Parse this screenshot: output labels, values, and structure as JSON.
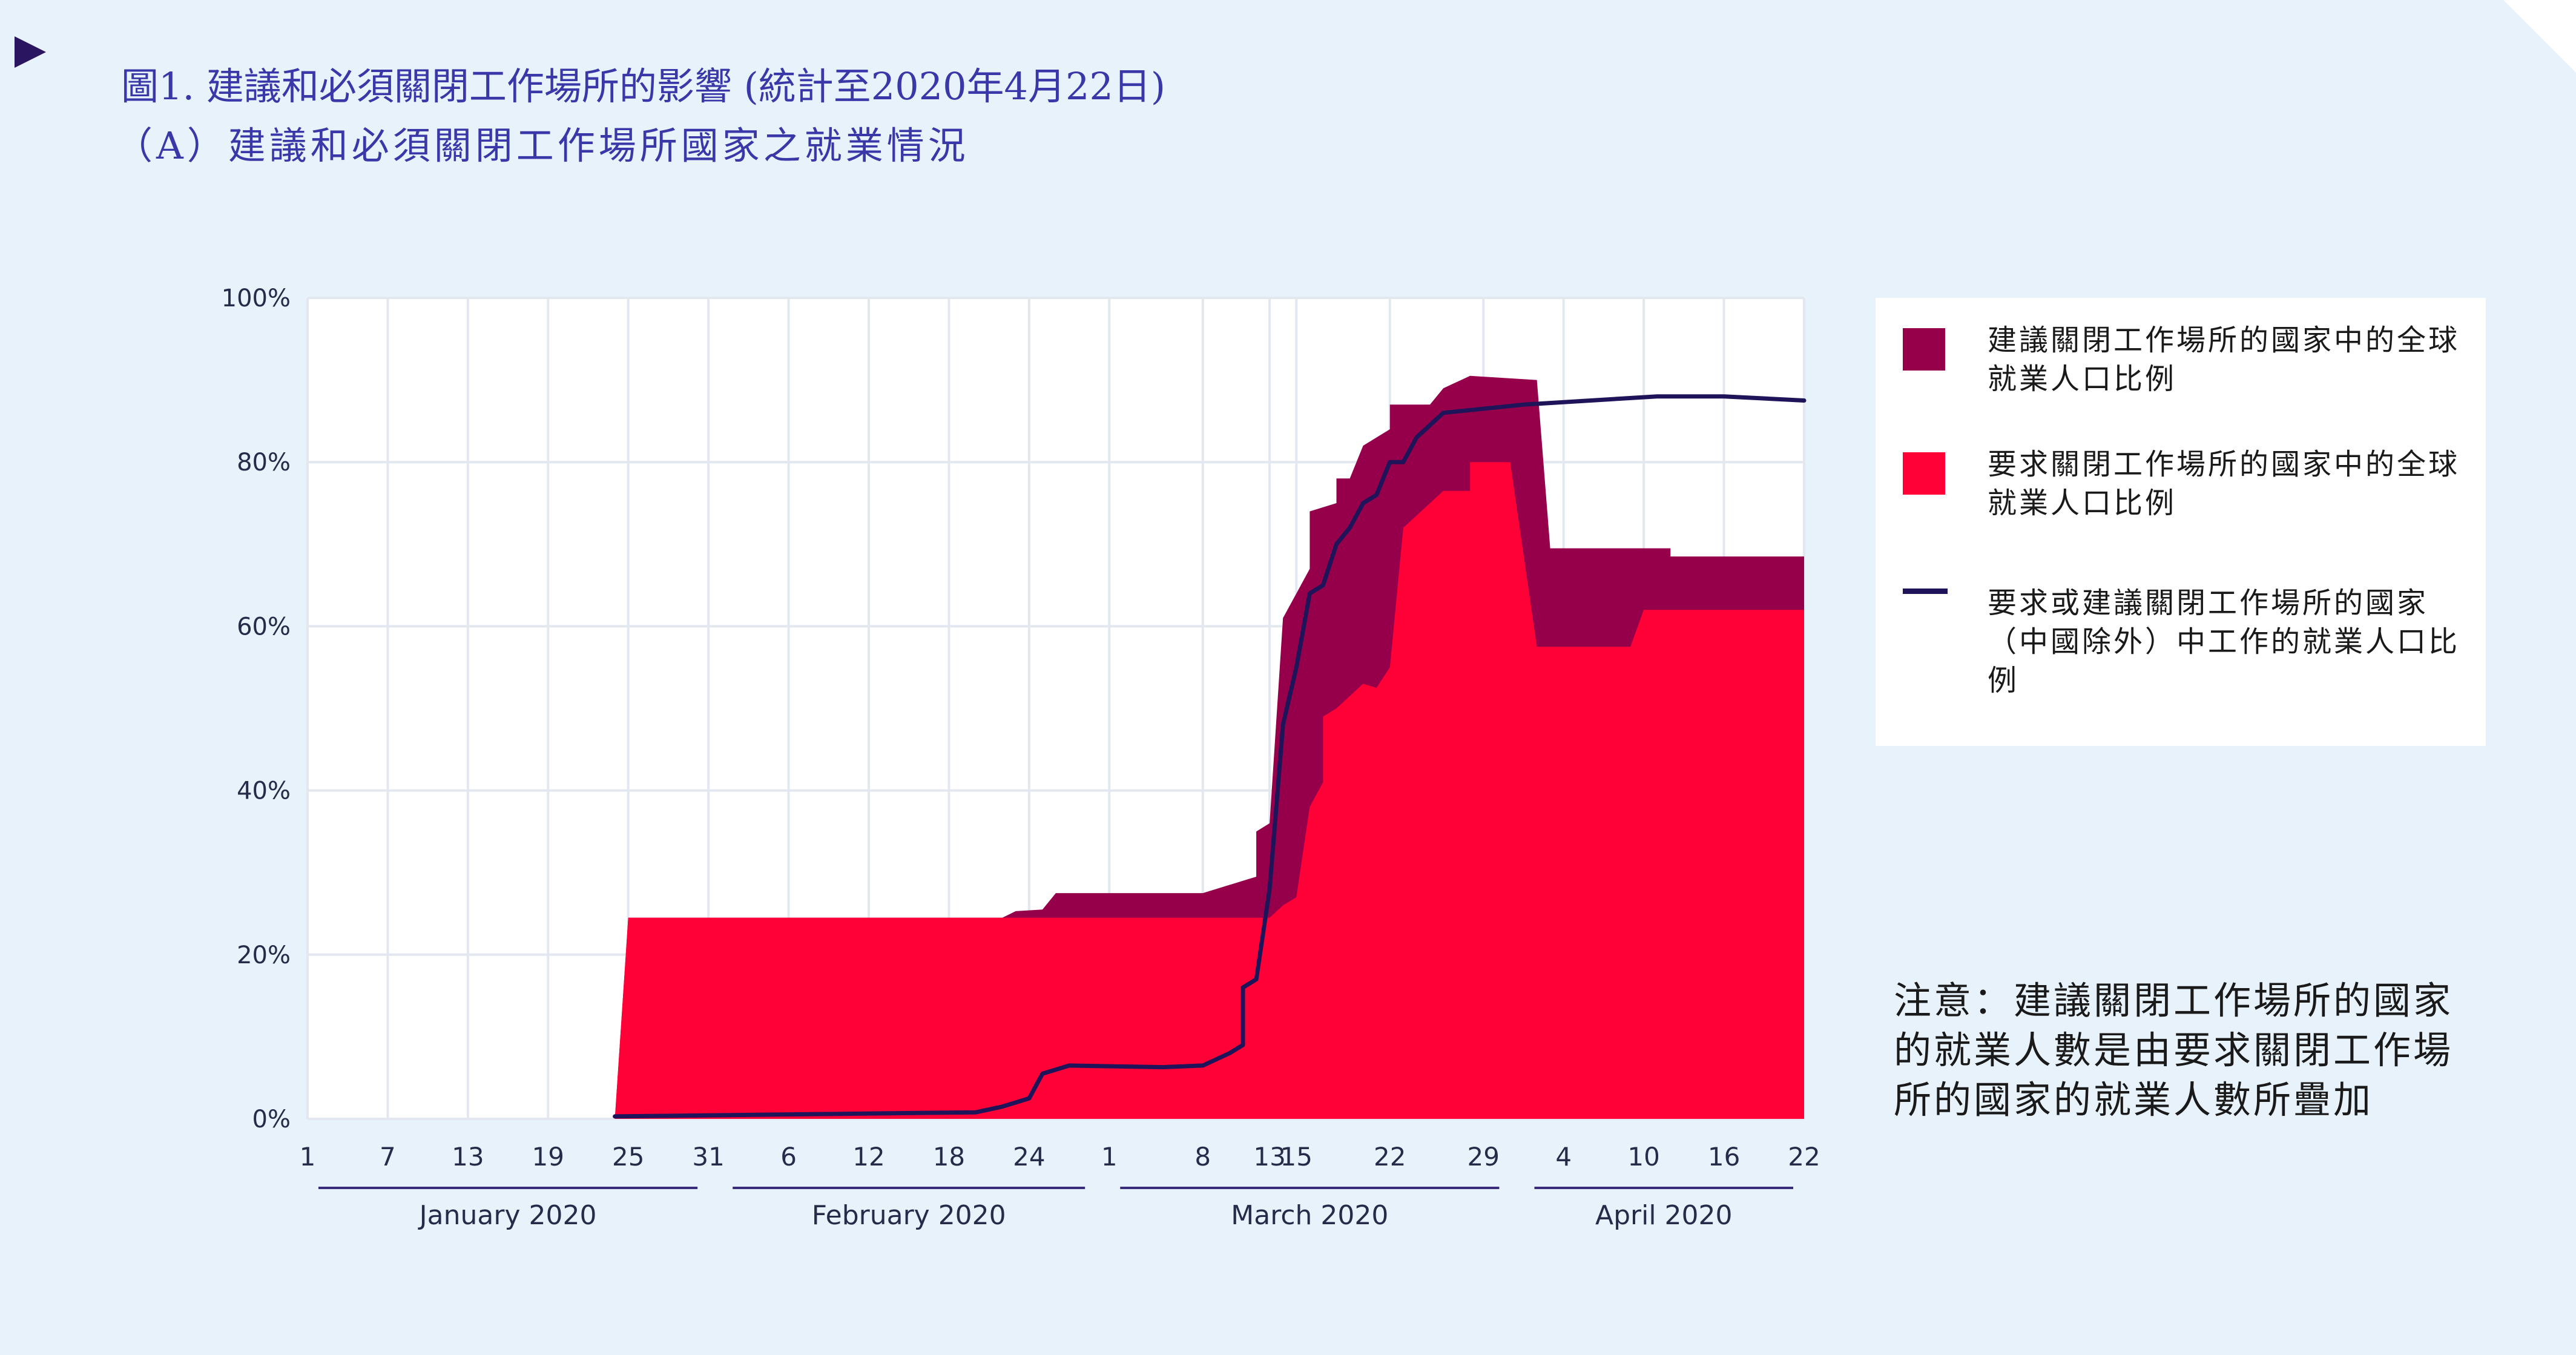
{
  "title_line1": "圖1. 建議和必須關閉工作場所的影響 (統計至2020年4月22日)",
  "title_line2": "（A）建議和必須關閉工作場所國家之就業情況",
  "legend": [
    {
      "label": "建議關閉工作場所的國家中的全球就業人口比例",
      "color": "#96004b",
      "kind": "area"
    },
    {
      "label": "要求關閉工作場所的國家中的全球就業人口比例",
      "color": "#ff0037",
      "kind": "area"
    },
    {
      "label": "要求或建議關閉工作場所的國家（中國除外）中工作的就業人口比例",
      "color": "#1f1459",
      "kind": "line"
    }
  ],
  "note": "注意：建議關閉工作場所的國家的就業人數是由要求關閉工作場所的國家的就業人數所疊加",
  "chart_data": {
    "type": "area",
    "y_ticks": [
      "0%",
      "20%",
      "40%",
      "60%",
      "80%",
      "100%"
    ],
    "ylim": [
      0,
      100
    ],
    "x_start": "2020-01-01",
    "x_end": "2020-04-22",
    "x_ticks": [
      {
        "date": "2020-01-01",
        "label": "1"
      },
      {
        "date": "2020-01-07",
        "label": "7"
      },
      {
        "date": "2020-01-13",
        "label": "13"
      },
      {
        "date": "2020-01-19",
        "label": "19"
      },
      {
        "date": "2020-01-25",
        "label": "25"
      },
      {
        "date": "2020-01-31",
        "label": "31"
      },
      {
        "date": "2020-02-06",
        "label": "6"
      },
      {
        "date": "2020-02-12",
        "label": "12"
      },
      {
        "date": "2020-02-18",
        "label": "18"
      },
      {
        "date": "2020-02-24",
        "label": "24"
      },
      {
        "date": "2020-03-01",
        "label": "1"
      },
      {
        "date": "2020-03-08",
        "label": "8"
      },
      {
        "date": "2020-03-13",
        "label": "13"
      },
      {
        "date": "2020-03-15",
        "label": "15"
      },
      {
        "date": "2020-03-22",
        "label": "22"
      },
      {
        "date": "2020-03-29",
        "label": "29"
      },
      {
        "date": "2020-04-04",
        "label": "4"
      },
      {
        "date": "2020-04-10",
        "label": "10"
      },
      {
        "date": "2020-04-16",
        "label": "16"
      },
      {
        "date": "2020-04-22",
        "label": "22"
      }
    ],
    "months": [
      {
        "label": "January 2020",
        "start": "2020-01-01",
        "end": "2020-01-31"
      },
      {
        "label": "February 2020",
        "start": "2020-02-01",
        "end": "2020-02-29"
      },
      {
        "label": "March 2020",
        "start": "2020-03-01",
        "end": "2020-03-31"
      },
      {
        "label": "April 2020",
        "start": "2020-04-01",
        "end": "2020-04-22"
      }
    ],
    "series": [
      {
        "name": "建議關閉工作場所的國家中的全球就業人口比例",
        "kind": "area",
        "color": "#96004b",
        "points": [
          [
            "2020-01-24",
            0
          ],
          [
            "2020-01-25",
            24.5
          ],
          [
            "2020-02-22",
            24.5
          ],
          [
            "2020-02-23",
            25.3
          ],
          [
            "2020-02-25",
            25.5
          ],
          [
            "2020-02-26",
            27.5
          ],
          [
            "2020-03-08",
            27.5
          ],
          [
            "2020-03-11",
            29
          ],
          [
            "2020-03-12",
            29.5
          ],
          [
            "2020-03-12",
            35
          ],
          [
            "2020-03-13",
            36
          ],
          [
            "2020-03-14",
            61
          ],
          [
            "2020-03-15",
            64
          ],
          [
            "2020-03-16",
            67
          ],
          [
            "2020-03-16",
            74
          ],
          [
            "2020-03-18",
            75
          ],
          [
            "2020-03-18",
            78
          ],
          [
            "2020-03-19",
            78
          ],
          [
            "2020-03-20",
            82
          ],
          [
            "2020-03-22",
            84
          ],
          [
            "2020-03-22",
            87
          ],
          [
            "2020-03-25",
            87
          ],
          [
            "2020-03-26",
            89
          ],
          [
            "2020-03-28",
            90.5
          ],
          [
            "2020-04-02",
            90
          ],
          [
            "2020-04-03",
            69.5
          ],
          [
            "2020-04-12",
            69.5
          ],
          [
            "2020-04-12",
            68.5
          ],
          [
            "2020-04-22",
            68.5
          ],
          [
            "2020-04-22",
            0
          ]
        ]
      },
      {
        "name": "要求關閉工作場所的國家中的全球就業人口比例",
        "kind": "area",
        "color": "#ff0037",
        "points": [
          [
            "2020-01-24",
            0
          ],
          [
            "2020-01-25",
            24.5
          ],
          [
            "2020-03-13",
            24.5
          ],
          [
            "2020-03-14",
            26
          ],
          [
            "2020-03-15",
            27
          ],
          [
            "2020-03-16",
            38
          ],
          [
            "2020-03-17",
            41
          ],
          [
            "2020-03-17",
            49
          ],
          [
            "2020-03-18",
            50
          ],
          [
            "2020-03-20",
            53
          ],
          [
            "2020-03-21",
            52.5
          ],
          [
            "2020-03-22",
            55
          ],
          [
            "2020-03-23",
            72
          ],
          [
            "2020-03-26",
            76.5
          ],
          [
            "2020-03-28",
            76.5
          ],
          [
            "2020-03-28",
            80
          ],
          [
            "2020-03-31",
            80
          ],
          [
            "2020-04-02",
            57.5
          ],
          [
            "2020-04-09",
            57.5
          ],
          [
            "2020-04-10",
            62
          ],
          [
            "2020-04-22",
            62
          ],
          [
            "2020-04-22",
            0
          ]
        ]
      },
      {
        "name": "要求或建議關閉工作場所的國家（中國除外）中工作的就業人口比例",
        "kind": "line",
        "color": "#1f1459",
        "points": [
          [
            "2020-01-24",
            0.3
          ],
          [
            "2020-02-20",
            0.8
          ],
          [
            "2020-02-22",
            1.5
          ],
          [
            "2020-02-24",
            2.5
          ],
          [
            "2020-02-25",
            5.5
          ],
          [
            "2020-02-27",
            6.5
          ],
          [
            "2020-03-05",
            6.3
          ],
          [
            "2020-03-08",
            6.5
          ],
          [
            "2020-03-10",
            8
          ],
          [
            "2020-03-11",
            9
          ],
          [
            "2020-03-11",
            16
          ],
          [
            "2020-03-12",
            17
          ],
          [
            "2020-03-13",
            28
          ],
          [
            "2020-03-14",
            48
          ],
          [
            "2020-03-15",
            55
          ],
          [
            "2020-03-16",
            64
          ],
          [
            "2020-03-17",
            65
          ],
          [
            "2020-03-18",
            70
          ],
          [
            "2020-03-19",
            72
          ],
          [
            "2020-03-20",
            75
          ],
          [
            "2020-03-21",
            76
          ],
          [
            "2020-03-22",
            80
          ],
          [
            "2020-03-23",
            80
          ],
          [
            "2020-03-24",
            83
          ],
          [
            "2020-03-26",
            86
          ],
          [
            "2020-04-01",
            87
          ],
          [
            "2020-04-11",
            88
          ],
          [
            "2020-04-16",
            88
          ],
          [
            "2020-04-22",
            87.5
          ]
        ]
      }
    ],
    "grid": true
  }
}
